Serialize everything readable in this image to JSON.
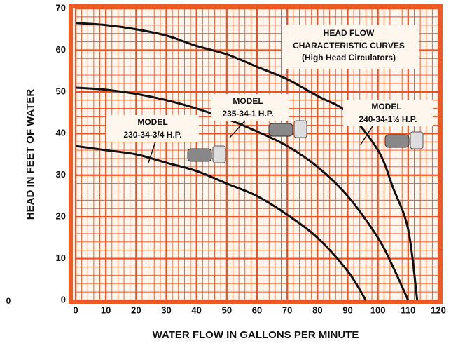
{
  "chart_data": {
    "type": "line",
    "xlabel": "WATER FLOW IN GALLONS PER MINUTE",
    "ylabel": "HEAD IN FEET OF WATER",
    "xlim": [
      0,
      120
    ],
    "ylim": [
      0,
      70
    ],
    "xticks": [
      0,
      10,
      20,
      30,
      40,
      50,
      60,
      70,
      80,
      90,
      100,
      110,
      120
    ],
    "yticks": [
      0,
      10,
      20,
      30,
      40,
      50,
      60,
      70
    ],
    "grid": true,
    "grid_color": "#f0501e",
    "series": [
      {
        "name": "240-34-1½ H.P.",
        "color": "#111111",
        "x": [
          0,
          10,
          20,
          30,
          40,
          50,
          60,
          70,
          80,
          90,
          100,
          105,
          110,
          113
        ],
        "values": [
          66.5,
          66,
          65,
          63.5,
          61,
          59,
          56,
          53,
          49,
          45,
          36,
          27,
          17,
          0
        ]
      },
      {
        "name": "235-34-1 H.P.",
        "color": "#111111",
        "x": [
          0,
          10,
          20,
          30,
          40,
          50,
          60,
          70,
          80,
          90,
          100,
          105,
          110
        ],
        "values": [
          51,
          50.5,
          49.5,
          48,
          46,
          43.5,
          40.5,
          37,
          32,
          25,
          15,
          8,
          0
        ]
      },
      {
        "name": "230-34-3/4 H.P.",
        "color": "#111111",
        "x": [
          0,
          10,
          20,
          30,
          40,
          50,
          60,
          70,
          80,
          90,
          96
        ],
        "values": [
          37,
          36,
          35,
          33,
          31,
          28,
          25,
          20.5,
          15,
          7,
          0
        ]
      }
    ],
    "annotations": [
      {
        "text": "HEAD FLOW"
      },
      {
        "text": "CHARACTERISTIC CURVES"
      },
      {
        "text": "(High Head Circulators)"
      },
      {
        "text": "MODEL"
      },
      {
        "text": "230-34-3/4 H.P."
      },
      {
        "text": "MODEL"
      },
      {
        "text": "235-34-1 H.P."
      },
      {
        "text": "MODEL"
      },
      {
        "text": "240-34-1½ H.P."
      },
      {
        "text": "0"
      }
    ]
  }
}
